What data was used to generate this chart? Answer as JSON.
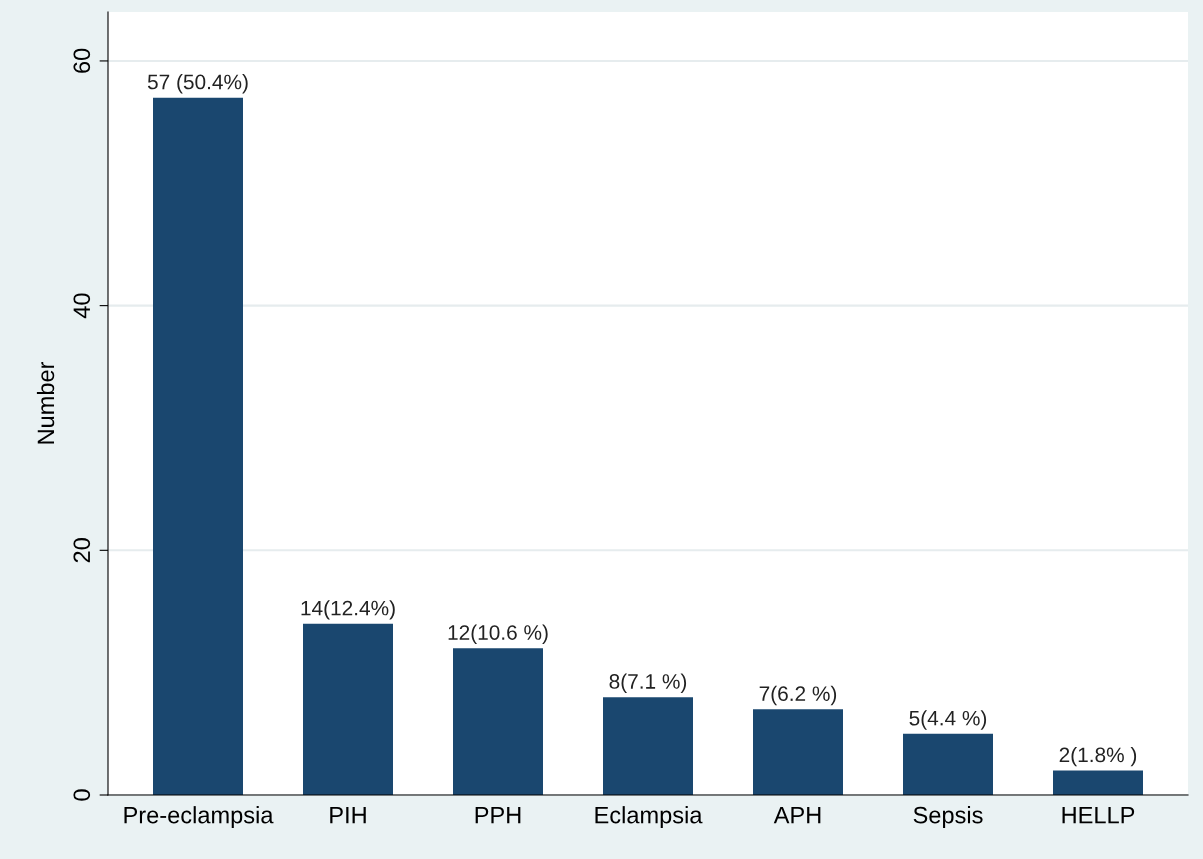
{
  "chart_data": {
    "type": "bar",
    "ylabel": "Number",
    "categories": [
      "Pre-eclampsia",
      "PIH",
      "PPH",
      "Eclampsia",
      "APH",
      "Sepsis",
      "HELLP"
    ],
    "values": [
      57,
      14,
      12,
      8,
      7,
      5,
      2
    ],
    "value_labels": [
      "57 (50.4%)",
      "14(12.4%)",
      "12(10.6 %)",
      "8(7.1 %)",
      "7(6.2 %)",
      "5(4.4 %)",
      "2(1.8% )"
    ],
    "color": "#1a476f",
    "ylim": [
      0,
      64
    ],
    "yticks": [
      0,
      20,
      40,
      60
    ],
    "grid": "y",
    "legend": false
  }
}
